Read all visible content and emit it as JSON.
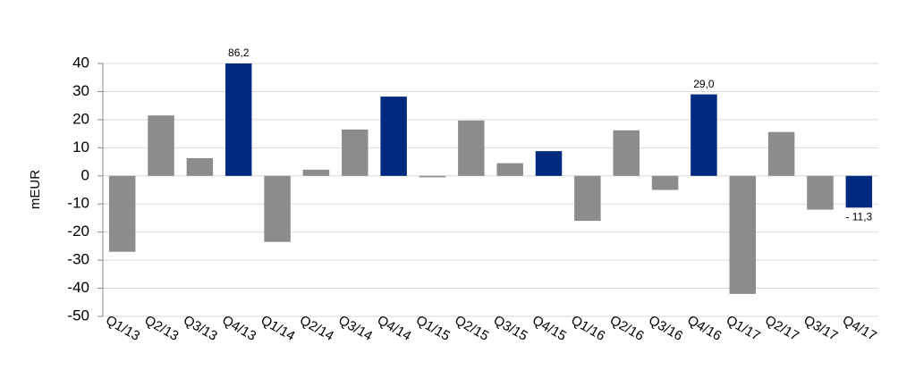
{
  "chart_data": {
    "type": "bar",
    "y_label": "mEUR",
    "categories": [
      "Q1/13",
      "Q2/13",
      "Q3/13",
      "Q4/13",
      "Q1/14",
      "Q2/14",
      "Q3/14",
      "Q4/14",
      "Q1/15",
      "Q2/15",
      "Q3/15",
      "Q4/15",
      "Q1/16",
      "Q2/16",
      "Q3/16",
      "Q4/16",
      "Q1/17",
      "Q2/17",
      "Q3/17",
      "Q4/17"
    ],
    "values": [
      -27,
      21.5,
      6.3,
      86.2,
      -23.5,
      2.2,
      16.5,
      28.2,
      -0.5,
      19.7,
      4.5,
      8.8,
      -16,
      16.2,
      -5,
      29.0,
      -42,
      15.6,
      -12,
      -11.3
    ],
    "value_labels": [
      null,
      null,
      null,
      "86,2",
      null,
      null,
      null,
      null,
      null,
      null,
      null,
      null,
      null,
      null,
      null,
      "29,0",
      null,
      null,
      null,
      "- 11,3"
    ],
    "colors": [
      "#8c8c8c",
      "#8c8c8c",
      "#8c8c8c",
      "#002a7f",
      "#8c8c8c",
      "#8c8c8c",
      "#8c8c8c",
      "#002a7f",
      "#8c8c8c",
      "#8c8c8c",
      "#8c8c8c",
      "#002a7f",
      "#8c8c8c",
      "#8c8c8c",
      "#8c8c8c",
      "#002a7f",
      "#8c8c8c",
      "#8c8c8c",
      "#8c8c8c",
      "#002a7f"
    ],
    "ylim": [
      -50,
      40
    ],
    "yticks": [
      -50,
      -40,
      -30,
      -20,
      -10,
      0,
      10,
      20,
      30,
      40
    ],
    "grid": true
  }
}
